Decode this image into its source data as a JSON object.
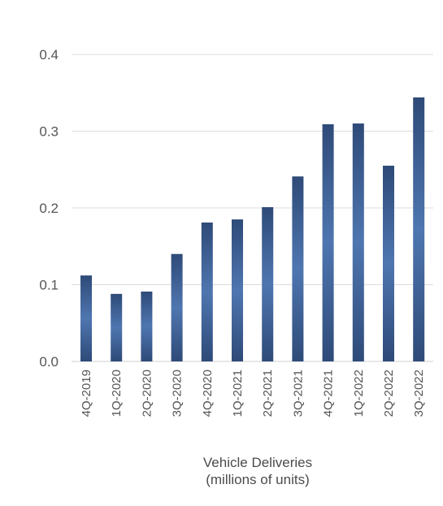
{
  "chart_data": {
    "type": "bar",
    "title": "",
    "xlabel_lines": [
      "Vehicle Deliveries",
      "(millions of units)"
    ],
    "ylabel": "",
    "ylim": [
      0,
      0.4
    ],
    "yticks": [
      "0.0",
      "0.1",
      "0.2",
      "0.3",
      "0.4"
    ],
    "categories": [
      "4Q-2019",
      "1Q-2020",
      "2Q-2020",
      "3Q-2020",
      "4Q-2020",
      "1Q-2021",
      "2Q-2021",
      "3Q-2021",
      "4Q-2021",
      "1Q-2022",
      "2Q-2022",
      "3Q-2022"
    ],
    "values": [
      0.112,
      0.088,
      0.091,
      0.14,
      0.181,
      0.185,
      0.201,
      0.241,
      0.309,
      0.31,
      0.255,
      0.344
    ],
    "grid": true,
    "legend": "none",
    "colors": {
      "bar_center": "#4f76b0",
      "bar_edge": "#2e4a78",
      "grid": "#dcdcdc",
      "text": "#555555"
    }
  }
}
